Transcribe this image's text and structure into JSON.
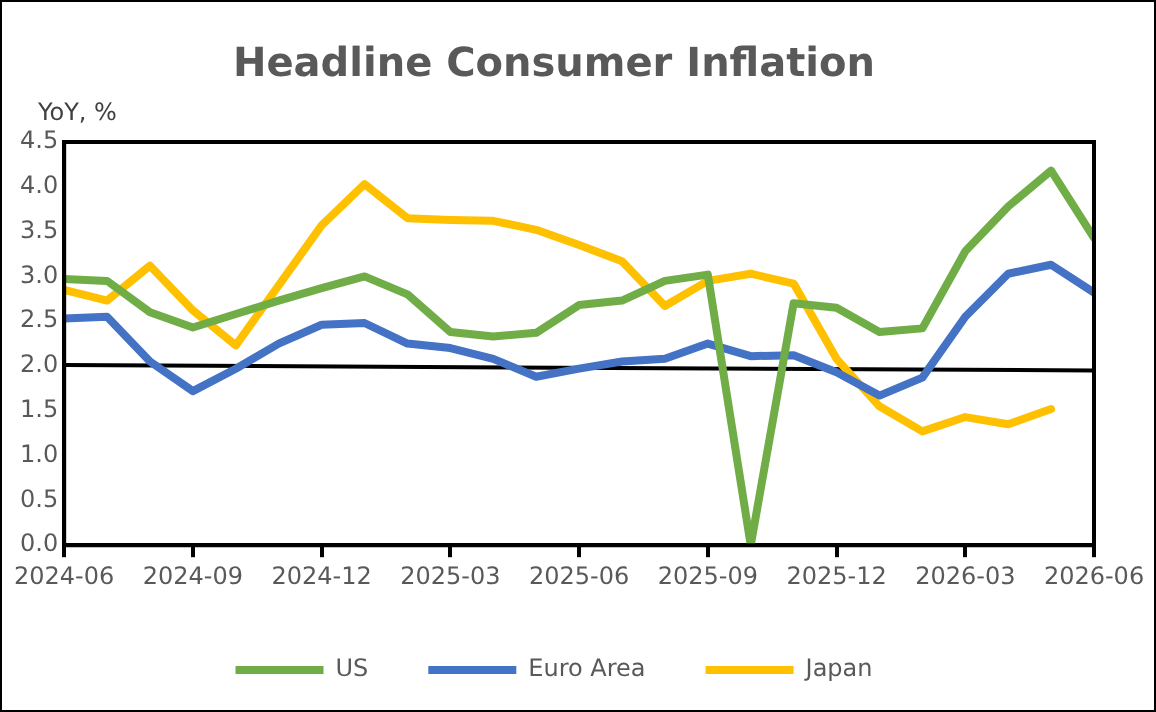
{
  "chart_data": {
    "type": "line",
    "title": "Headline Consumer Inflation",
    "ylabel": "YoY, %",
    "x": [
      "2024-06",
      "2024-07",
      "2024-08",
      "2024-09",
      "2024-10",
      "2024-11",
      "2024-12",
      "2025-01",
      "2025-02",
      "2025-03",
      "2025-04",
      "2025-05",
      "2025-06",
      "2025-07",
      "2025-08",
      "2025-09",
      "2025-10",
      "2025-11",
      "2025-12",
      "2026-01",
      "2026-02",
      "2026-03",
      "2026-04",
      "2026-05",
      "2026-06"
    ],
    "series": [
      {
        "name": "US",
        "color": "#70ad47",
        "values": [
          2.97,
          2.95,
          2.6,
          2.43,
          2.58,
          2.73,
          2.87,
          3.0,
          2.8,
          2.38,
          2.33,
          2.37,
          2.68,
          2.73,
          2.95,
          3.02,
          0.0,
          2.7,
          2.65,
          2.38,
          2.42,
          3.28,
          3.78,
          4.18,
          3.43
        ]
      },
      {
        "name": "Euro Area",
        "color": "#4472c4",
        "values": [
          2.53,
          2.55,
          2.05,
          1.72,
          1.97,
          2.25,
          2.46,
          2.48,
          2.25,
          2.2,
          2.08,
          1.88,
          1.97,
          2.05,
          2.08,
          2.25,
          2.11,
          2.12,
          1.93,
          1.67,
          1.87,
          2.55,
          3.03,
          3.13,
          2.82
        ]
      },
      {
        "name": "Japan",
        "color": "#ffc000",
        "values": [
          2.85,
          2.73,
          3.12,
          2.62,
          2.23,
          2.9,
          3.57,
          4.03,
          3.65,
          3.63,
          3.62,
          3.52,
          3.35,
          3.17,
          2.67,
          2.95,
          3.03,
          2.92,
          2.08,
          1.55,
          1.27,
          1.43,
          1.35,
          1.52,
          null
        ]
      },
      {
        "color": "#000000",
        "x": [
          "2024-06",
          "2026-06"
        ],
        "values": [
          2.01,
          1.95
        ]
      }
    ],
    "xlim": [
      "2024-06",
      "2026-06"
    ],
    "xticks": [
      "2024-06",
      "2024-09",
      "2024-12",
      "2025-03",
      "2025-06",
      "2025-09",
      "2025-12",
      "2026-03",
      "2026-06"
    ],
    "ylim": [
      0,
      4.5
    ],
    "yticks": [
      {
        "value": 0,
        "label": "0.0"
      },
      0.5,
      {
        "value": 1,
        "label": "1.0"
      },
      1.5,
      {
        "value": 2,
        "label": "2.0"
      },
      2.5,
      {
        "value": 3,
        "label": "3.0"
      },
      3.5,
      {
        "value": 4,
        "label": "4.0"
      },
      4.5
    ],
    "grid": false,
    "legend": "bottom",
    "marker": "none",
    "line_style": "solid"
  }
}
